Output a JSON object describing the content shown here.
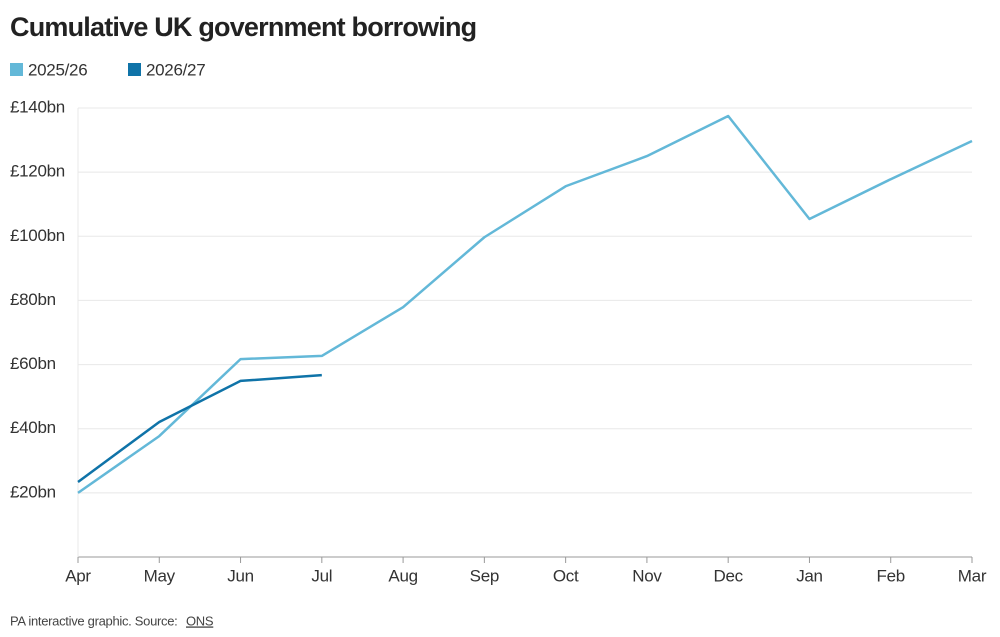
{
  "chart_data": {
    "type": "line",
    "title": "Cumulative UK government borrowing",
    "categories": [
      "Apr",
      "May",
      "Jun",
      "Jul",
      "Aug",
      "Sep",
      "Oct",
      "Nov",
      "Dec",
      "Jan",
      "Feb",
      "Mar"
    ],
    "series": [
      {
        "name": "2025/26",
        "color": "#63b8d8",
        "values": [
          20,
          37.7,
          61.7,
          62.7,
          77.9,
          99.7,
          115.6,
          125,
          137.5,
          105.4,
          117.8,
          129.7
        ]
      },
      {
        "name": "2026/27",
        "color": "#0f73a8",
        "values": [
          23.4,
          42.1,
          54.9,
          56.7,
          null,
          null,
          null,
          null,
          null,
          null,
          null,
          null
        ]
      }
    ],
    "ylim": [
      0,
      140
    ],
    "yticks": [
      {
        "value": 20,
        "label": "£20bn"
      },
      {
        "value": 40,
        "label": "£40bn"
      },
      {
        "value": 60,
        "label": "£60bn"
      },
      {
        "value": 80,
        "label": "£80bn"
      },
      {
        "value": 100,
        "label": "£100bn"
      },
      {
        "value": 120,
        "label": "£120bn"
      },
      {
        "value": 140,
        "label": "£140bn"
      }
    ],
    "grid": true,
    "source": {
      "text": "PA interactive graphic. Source:",
      "link": "ONS"
    }
  }
}
